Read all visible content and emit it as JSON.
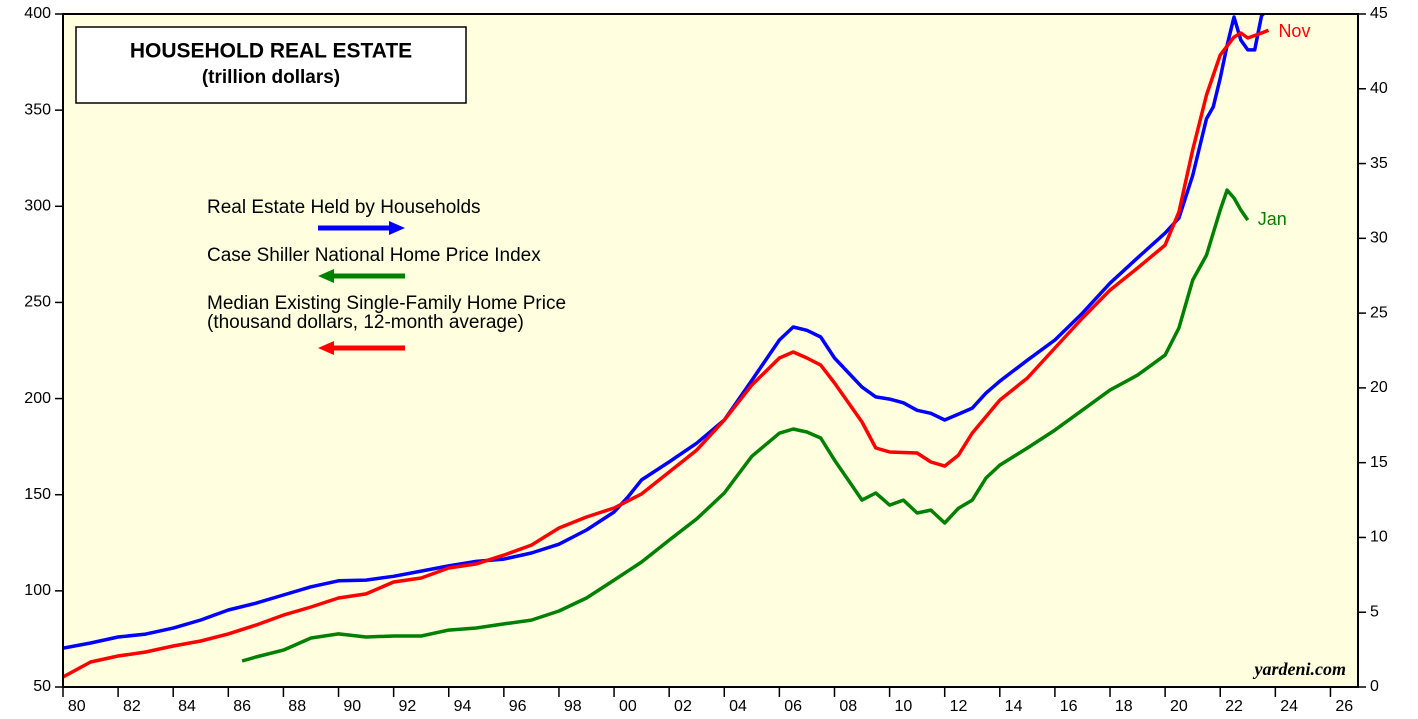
{
  "chart_data": {
    "type": "line",
    "title": "HOUSEHOLD REAL ESTATE",
    "subtitle": "(trillion dollars)",
    "xlim": [
      1980,
      2027
    ],
    "xticks": [
      {
        "value": 1980,
        "label": "80"
      },
      {
        "value": 1982,
        "label": "82"
      },
      {
        "value": 1984,
        "label": "84"
      },
      {
        "value": 1986,
        "label": "86"
      },
      {
        "value": 1988,
        "label": "88"
      },
      {
        "value": 1990,
        "label": "90"
      },
      {
        "value": 1992,
        "label": "92"
      },
      {
        "value": 1994,
        "label": "94"
      },
      {
        "value": 1996,
        "label": "96"
      },
      {
        "value": 1998,
        "label": "98"
      },
      {
        "value": 2000,
        "label": "00"
      },
      {
        "value": 2002,
        "label": "02"
      },
      {
        "value": 2004,
        "label": "04"
      },
      {
        "value": 2006,
        "label": "06"
      },
      {
        "value": 2008,
        "label": "08"
      },
      {
        "value": 2010,
        "label": "10"
      },
      {
        "value": 2012,
        "label": "12"
      },
      {
        "value": 2014,
        "label": "14"
      },
      {
        "value": 2016,
        "label": "16"
      },
      {
        "value": 2018,
        "label": "18"
      },
      {
        "value": 2020,
        "label": "20"
      },
      {
        "value": 2022,
        "label": "22"
      },
      {
        "value": 2024,
        "label": "24"
      },
      {
        "value": 2026,
        "label": "26"
      }
    ],
    "ylim": [
      50,
      400
    ],
    "yticks": [
      50,
      100,
      150,
      200,
      250,
      300,
      350,
      400
    ],
    "y2lim": [
      0,
      45
    ],
    "y2ticks": [
      0,
      5,
      10,
      15,
      20,
      25,
      30,
      35,
      40,
      45
    ],
    "source": "yardeni.com",
    "series": [
      {
        "name": "Real Estate Held by Households",
        "color": "#0000ff",
        "axis": "y2",
        "x": [
          1980,
          1981,
          1982,
          1983,
          1984,
          1985,
          1986,
          1987,
          1988,
          1989,
          1990,
          1991,
          1992,
          1993,
          1994,
          1995,
          1996,
          1997,
          1998,
          1999,
          2000,
          2000.5,
          2001,
          2002,
          2003,
          2004,
          2005,
          2006,
          2006.5,
          2007,
          2007.5,
          2008,
          2009,
          2009.5,
          2010,
          2010.5,
          2011,
          2011.5,
          2012,
          2012.5,
          2013,
          2013.5,
          2014,
          2015,
          2016,
          2017,
          2018,
          2019,
          2020,
          2020.5,
          2021,
          2021.5,
          2021.75,
          2022,
          2022.25,
          2022.5,
          2022.75,
          2023,
          2023.25,
          2023.5,
          2023.75
        ],
        "values": [
          2.6,
          2.94,
          3.34,
          3.54,
          3.94,
          4.48,
          5.15,
          5.6,
          6.15,
          6.7,
          7.1,
          7.15,
          7.4,
          7.75,
          8.1,
          8.4,
          8.55,
          8.96,
          9.55,
          10.5,
          11.7,
          12.7,
          13.85,
          15.05,
          16.3,
          17.85,
          20.5,
          23.2,
          24.07,
          23.85,
          23.4,
          22.0,
          20.05,
          19.4,
          19.25,
          19.0,
          18.5,
          18.3,
          17.85,
          18.25,
          18.65,
          19.65,
          20.45,
          21.85,
          23.2,
          25.0,
          27.0,
          28.7,
          30.35,
          31.35,
          34.2,
          38.0,
          38.8,
          40.7,
          42.9,
          44.8,
          43.25,
          42.6,
          42.6,
          44.9,
          45.3
        ]
      },
      {
        "name": "Case Shiller National Home Price Index",
        "color": "#008000",
        "axis": "y",
        "end_label": "Jan",
        "x": [
          1986.5,
          1987,
          1988,
          1989,
          1990,
          1991,
          1992,
          1993,
          1994,
          1995,
          1996,
          1997,
          1998,
          1999,
          2000,
          2001,
          2002,
          2003,
          2004,
          2005,
          2006,
          2006.5,
          2007,
          2007.5,
          2008,
          2008.5,
          2009,
          2009.5,
          2010,
          2010.5,
          2011,
          2011.5,
          2012,
          2012.5,
          2013,
          2013.5,
          2014,
          2015,
          2016,
          2017,
          2018,
          2019,
          2020,
          2020.5,
          2021,
          2021.5,
          2022,
          2022.25,
          2022.5,
          2022.75,
          2023
        ],
        "values": [
          63.5,
          65.6,
          69.2,
          75.5,
          77.6,
          76,
          76.5,
          76.5,
          79.6,
          80.7,
          82.8,
          84.8,
          89.5,
          96.3,
          105.6,
          115,
          126.4,
          137.4,
          150.9,
          170,
          182,
          184.2,
          182.6,
          179.5,
          168,
          157.6,
          147.2,
          150.9,
          144.6,
          147.2,
          140.5,
          142,
          135.3,
          143,
          147.2,
          158.7,
          165.4,
          174.3,
          183.6,
          194,
          204.4,
          212.2,
          222.6,
          236.7,
          261.6,
          274.6,
          298,
          308.4,
          304.3,
          298,
          292.8
        ]
      },
      {
        "name": "Median Existing Single-Family Home Price",
        "name_line2": "(thousand dollars, 12-month average)",
        "color": "#ff0000",
        "axis": "y",
        "end_label": "Nov",
        "x": [
          1980,
          1981,
          1982,
          1983,
          1984,
          1985,
          1986,
          1987,
          1988,
          1989,
          1990,
          1991,
          1992,
          1993,
          1994,
          1995,
          1996,
          1997,
          1998,
          1999,
          2000,
          2001,
          2002,
          2003,
          2004,
          2005,
          2006,
          2006.5,
          2007,
          2007.5,
          2008,
          2009,
          2009.5,
          2010,
          2011,
          2011.5,
          2012,
          2012.5,
          2013,
          2014,
          2015,
          2016,
          2017,
          2018,
          2019,
          2020,
          2020.5,
          2021,
          2021.5,
          2022,
          2022.5,
          2022.75,
          2023,
          2023.5,
          2023.75
        ],
        "values": [
          55.2,
          63,
          66.1,
          68.2,
          71.3,
          73.9,
          77.6,
          82.2,
          87.4,
          91.6,
          96.3,
          98.4,
          104.6,
          106.7,
          111.9,
          114,
          118.6,
          123.8,
          132.7,
          138.4,
          143.1,
          150.4,
          161.8,
          173.2,
          188.8,
          207,
          221.1,
          224.2,
          221.1,
          217.4,
          208.1,
          187.8,
          174.3,
          172.2,
          171.7,
          167,
          164.9,
          170.6,
          182.1,
          199.2,
          210.7,
          226.3,
          241.9,
          256.4,
          267.9,
          279.8,
          297,
          329.3,
          357.9,
          378.6,
          388,
          390.1,
          387.5,
          390.1,
          391.6
        ]
      }
    ]
  }
}
